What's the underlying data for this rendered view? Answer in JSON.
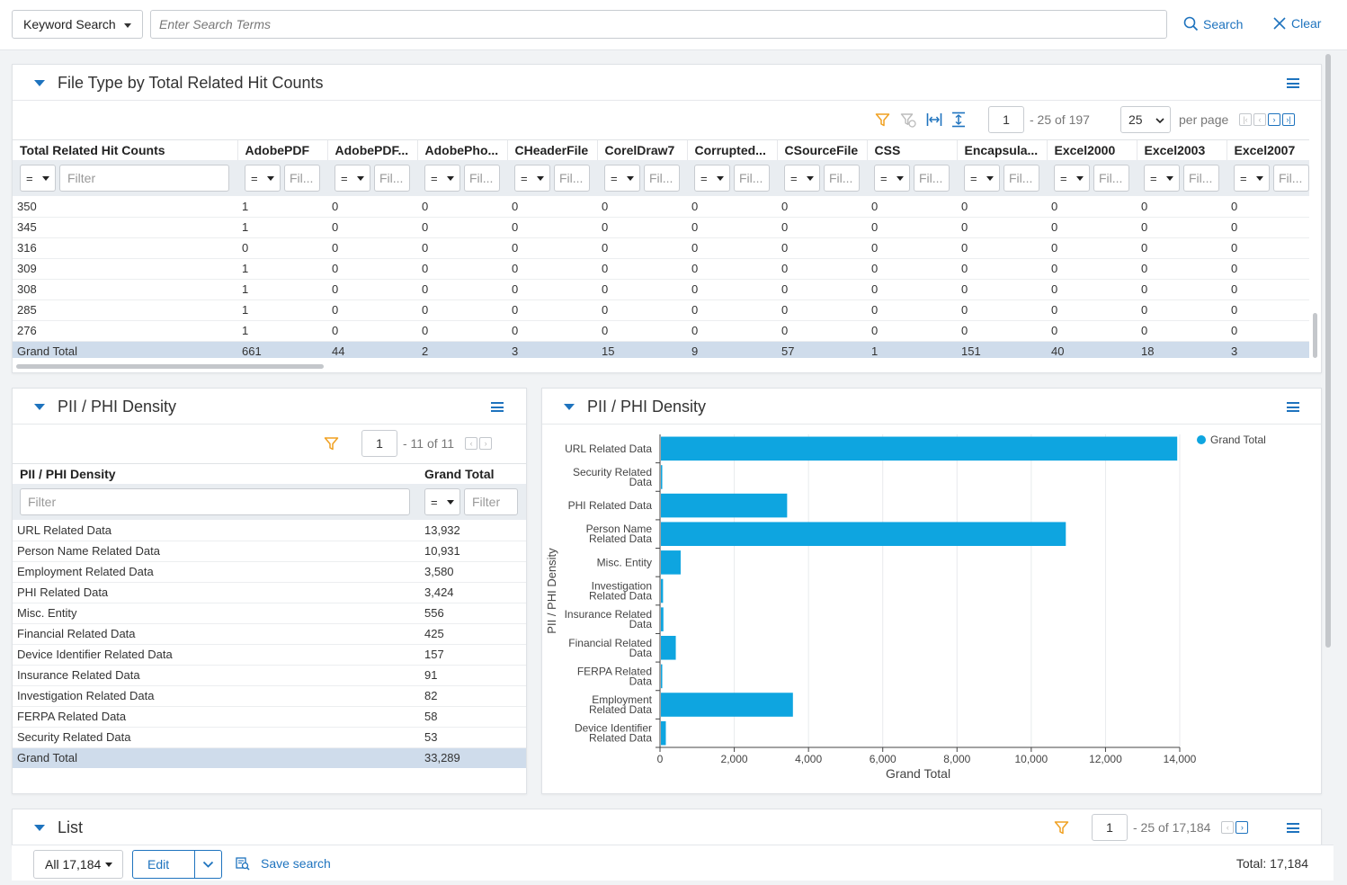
{
  "topbar": {
    "keyword_label": "Keyword Search",
    "search_placeholder": "Enter Search Terms",
    "search_label": "Search",
    "clear_label": "Clear"
  },
  "filetype_panel": {
    "title": "File Type by Total Related Hit Counts",
    "page": "1",
    "range_text": "- 25  of  197",
    "per_page_value": "25",
    "per_page_label": "per page",
    "columns": [
      "Total Related Hit Counts",
      "AdobePDF",
      "AdobePDF...",
      "AdobePho...",
      "CHeaderFile",
      "CorelDraw7",
      "Corrupted...",
      "CSourceFile",
      "CSS",
      "Encapsula...",
      "Excel2000",
      "Excel2003",
      "Excel2007"
    ],
    "filter_placeholder": "Filter",
    "filter_short_placeholder": "Fil...",
    "filter_op": "=",
    "rows": [
      [
        "350",
        "1",
        "0",
        "0",
        "0",
        "0",
        "0",
        "0",
        "0",
        "0",
        "0",
        "0",
        "0"
      ],
      [
        "345",
        "1",
        "0",
        "0",
        "0",
        "0",
        "0",
        "0",
        "0",
        "0",
        "0",
        "0",
        "0"
      ],
      [
        "316",
        "0",
        "0",
        "0",
        "0",
        "0",
        "0",
        "0",
        "0",
        "0",
        "0",
        "0",
        "0"
      ],
      [
        "309",
        "1",
        "0",
        "0",
        "0",
        "0",
        "0",
        "0",
        "0",
        "0",
        "0",
        "0",
        "0"
      ],
      [
        "308",
        "1",
        "0",
        "0",
        "0",
        "0",
        "0",
        "0",
        "0",
        "0",
        "0",
        "0",
        "0"
      ],
      [
        "285",
        "1",
        "0",
        "0",
        "0",
        "0",
        "0",
        "0",
        "0",
        "0",
        "0",
        "0",
        "0"
      ],
      [
        "276",
        "1",
        "0",
        "0",
        "0",
        "0",
        "0",
        "0",
        "0",
        "0",
        "0",
        "0",
        "0"
      ]
    ],
    "grand_total": [
      "Grand Total",
      "661",
      "44",
      "2",
      "3",
      "15",
      "9",
      "57",
      "1",
      "151",
      "40",
      "18",
      "3"
    ]
  },
  "pii_table_panel": {
    "title": "PII / PHI Density",
    "page": "1",
    "range_text": "- 11  of  11",
    "col1": "PII / PHI Density",
    "col2": "Grand Total",
    "filter_placeholder": "Filter",
    "filter_op": "=",
    "rows": [
      [
        "URL Related Data",
        "13,932"
      ],
      [
        "Person Name Related Data",
        "10,931"
      ],
      [
        "Employment Related Data",
        "3,580"
      ],
      [
        "PHI Related Data",
        "3,424"
      ],
      [
        "Misc. Entity",
        "556"
      ],
      [
        "Financial Related Data",
        "425"
      ],
      [
        "Device Identifier Related Data",
        "157"
      ],
      [
        "Insurance Related Data",
        "91"
      ],
      [
        "Investigation Related Data",
        "82"
      ],
      [
        "FERPA Related Data",
        "58"
      ],
      [
        "Security Related Data",
        "53"
      ]
    ],
    "grand_total": [
      "Grand Total",
      "33,289"
    ]
  },
  "pii_chart_panel": {
    "title": "PII / PHI Density"
  },
  "chart_data": {
    "type": "bar",
    "orientation": "horizontal",
    "categories": [
      [
        "URL Related Data"
      ],
      [
        "Security Related",
        "Data"
      ],
      [
        "PHI Related Data"
      ],
      [
        "Person Name",
        "Related Data"
      ],
      [
        "Misc. Entity"
      ],
      [
        "Investigation",
        "Related Data"
      ],
      [
        "Insurance Related",
        "Data"
      ],
      [
        "Financial Related",
        "Data"
      ],
      [
        "FERPA Related",
        "Data"
      ],
      [
        "Employment",
        "Related Data"
      ],
      [
        "Device Identifier",
        "Related Data"
      ]
    ],
    "series": [
      {
        "name": "Grand Total",
        "values": [
          13932,
          53,
          3424,
          10931,
          556,
          82,
          91,
          425,
          58,
          3580,
          157
        ],
        "color": "#0ea5e0"
      }
    ],
    "xlabel": "Grand Total",
    "ylabel": "PII / PHI Density",
    "xlim": [
      0,
      14000
    ],
    "xticks": [
      0,
      2000,
      4000,
      6000,
      8000,
      10000,
      12000,
      14000
    ],
    "xtick_labels": [
      "0",
      "2,000",
      "4,000",
      "6,000",
      "8,000",
      "10,000",
      "12,000",
      "14,000"
    ],
    "grid": true,
    "legend": "top-right"
  },
  "list_panel": {
    "title": "List",
    "page": "1",
    "range_text": "- 25  of  17,184"
  },
  "bottombar": {
    "all_label": "All 17,184",
    "edit_label": "Edit",
    "save_search_label": "Save search",
    "total_label": "Total: 17,184"
  },
  "colors": {
    "accent": "#1e73be",
    "bar": "#0ea5e0",
    "filter_icon": "#f0a020",
    "grand_row": "#cfdceb"
  }
}
